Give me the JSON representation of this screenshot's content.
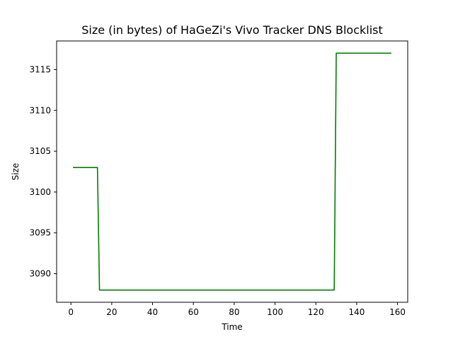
{
  "chart_data": {
    "type": "line",
    "title": "Size (in bytes) of HaGeZi's Vivo Tracker DNS Blocklist",
    "xlabel": "Time",
    "ylabel": "Size",
    "xlim": [
      -7,
      165
    ],
    "ylim": [
      3086.5,
      3118.5
    ],
    "xticks": [
      0,
      20,
      40,
      60,
      80,
      100,
      120,
      140,
      160
    ],
    "yticks": [
      3090,
      3095,
      3100,
      3105,
      3110,
      3115
    ],
    "grid": false,
    "series": [
      {
        "color": "#008000",
        "x": [
          1,
          13,
          14,
          129,
          130,
          157
        ],
        "y": [
          3103,
          3103,
          3088,
          3088,
          3117,
          3117
        ]
      }
    ]
  }
}
